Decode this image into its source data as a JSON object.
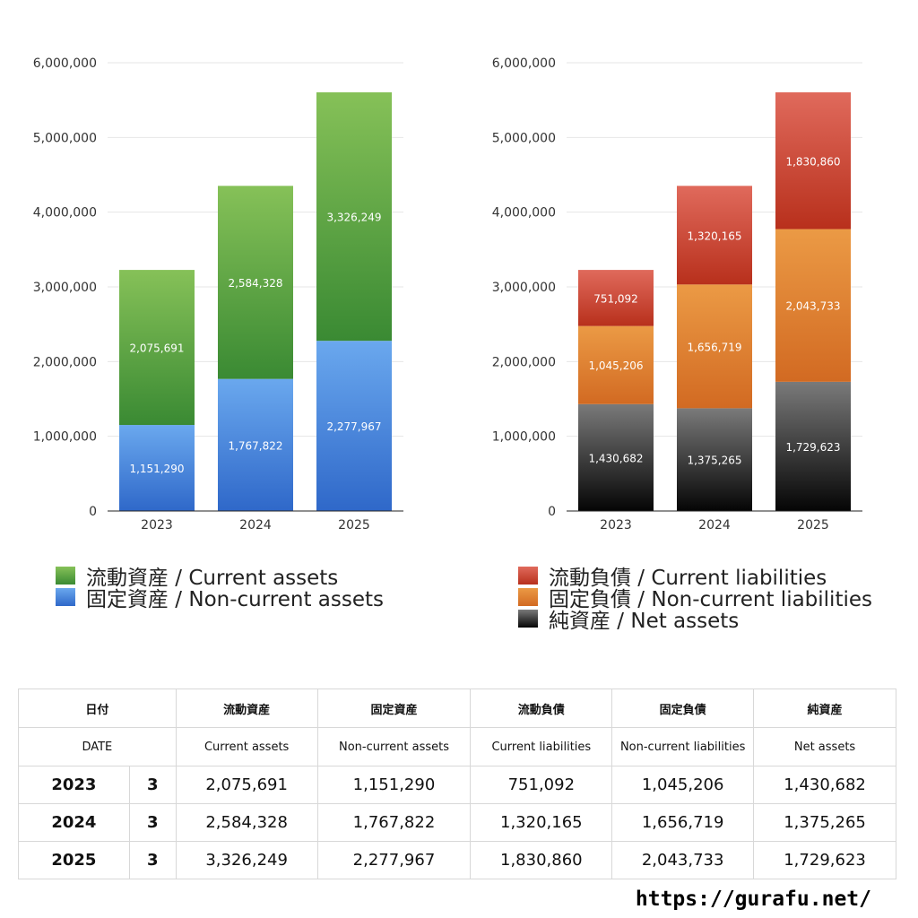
{
  "chart_data": [
    {
      "type": "bar",
      "stacked": true,
      "categories": [
        "2023",
        "2024",
        "2025"
      ],
      "ylim": [
        0,
        6000000
      ],
      "yticks": [
        "0",
        "1,000,000",
        "2,000,000",
        "3,000,000",
        "4,000,000",
        "5,000,000",
        "6,000,000"
      ],
      "grid": true,
      "legend_position": "bottom",
      "series": [
        {
          "name": "固定資産 / Non-current assets",
          "values": [
            1151290,
            1767822,
            2277967
          ],
          "labels": [
            "1,151,290",
            "1,767,822",
            "2,277,967"
          ],
          "color_top": "#6aa8ee",
          "color_bottom": "#2f68c9"
        },
        {
          "name": "流動資産 / Current assets",
          "values": [
            2075691,
            2584328,
            3326249
          ],
          "labels": [
            "2,075,691",
            "2,584,328",
            "3,326,249"
          ],
          "color_top": "#86c158",
          "color_bottom": "#3a8a33"
        }
      ]
    },
    {
      "type": "bar",
      "stacked": true,
      "categories": [
        "2023",
        "2024",
        "2025"
      ],
      "ylim": [
        0,
        6000000
      ],
      "yticks": [
        "0",
        "1,000,000",
        "2,000,000",
        "3,000,000",
        "4,000,000",
        "5,000,000",
        "6,000,000"
      ],
      "grid": true,
      "legend_position": "bottom",
      "series": [
        {
          "name": "純資産 / Net assets",
          "values": [
            1430682,
            1375265,
            1729623
          ],
          "labels": [
            "1,430,682",
            "1,375,265",
            "1,729,623"
          ],
          "color_top": "#7a7a7a",
          "color_bottom": "#050505"
        },
        {
          "name": "固定負債 / Non-current liabilities",
          "values": [
            1045206,
            1656719,
            2043733
          ],
          "labels": [
            "1,045,206",
            "1,656,719",
            "2,043,733"
          ],
          "color_top": "#eb9a45",
          "color_bottom": "#d26a22"
        },
        {
          "name": "流動負債 / Current liabilities",
          "values": [
            751092,
            1320165,
            1830860
          ],
          "labels": [
            "751,092",
            "1,320,165",
            "1,830,860"
          ],
          "color_top": "#e06a5c",
          "color_bottom": "#b8301c"
        }
      ]
    }
  ],
  "legend_left": [
    {
      "label": "流動資産 / Current assets",
      "color": "#5aa544"
    },
    {
      "label": "固定資産 / Non-current assets",
      "color": "#4c8be0"
    }
  ],
  "legend_right": [
    {
      "label": "流動負債 / Current liabilities",
      "color": "#d44a38"
    },
    {
      "label": "固定負債 / Non-current liabilities",
      "color": "#e48533"
    },
    {
      "label": "純資産 / Net assets",
      "color": "#333333"
    }
  ],
  "table": {
    "header_jp": [
      "日付",
      "",
      "流動資産",
      "固定資産",
      "流動負債",
      "固定負債",
      "純資産"
    ],
    "header_en": [
      "DATE",
      "",
      "Current assets",
      "Non-current assets",
      "Current liabilities",
      "Non-current liabilities",
      "Net assets"
    ],
    "rows": [
      [
        "2023",
        "3",
        "2,075,691",
        "1,151,290",
        "751,092",
        "1,045,206",
        "1,430,682"
      ],
      [
        "2024",
        "3",
        "2,584,328",
        "1,767,822",
        "1,320,165",
        "1,656,719",
        "1,375,265"
      ],
      [
        "2025",
        "3",
        "3,326,249",
        "2,277,967",
        "1,830,860",
        "2,043,733",
        "1,729,623"
      ]
    ]
  },
  "footer_url": "https://gurafu.net/"
}
